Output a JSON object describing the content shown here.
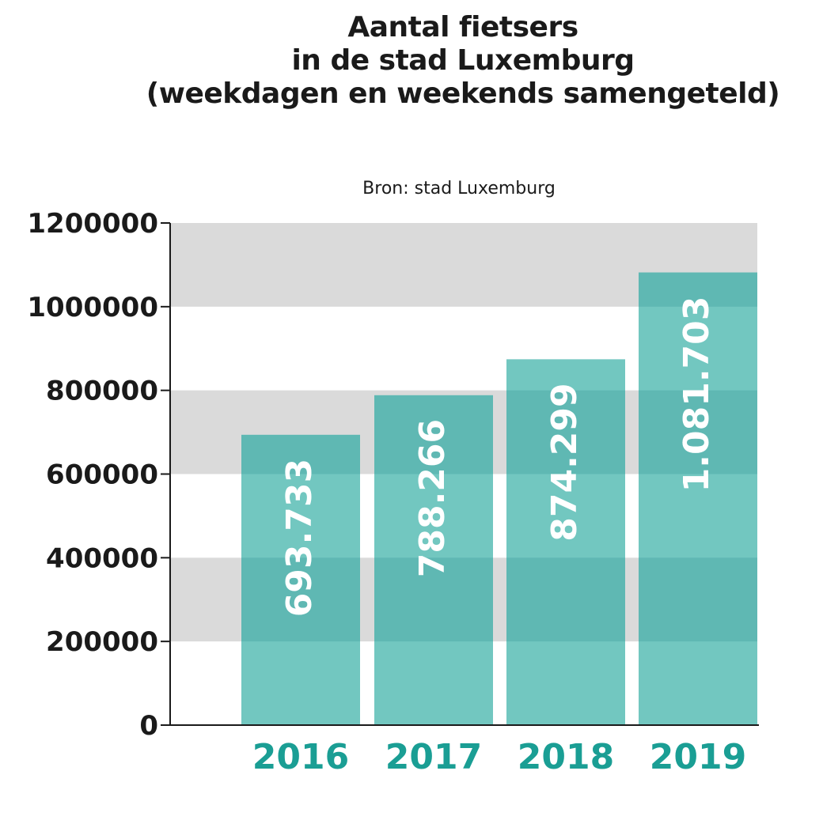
{
  "chart_data": {
    "type": "bar",
    "title_lines": [
      "Aantal fietsers",
      "in de stad Luxemburg",
      "(weekdagen en weekends samengeteld)"
    ],
    "subtitle": "Bron: stad Luxemburg",
    "categories": [
      "2016",
      "2017",
      "2018",
      "2019"
    ],
    "values": [
      693733,
      788266,
      874299,
      1081703
    ],
    "value_labels": [
      "693.733",
      "788.266",
      "874.299",
      "1.081.703"
    ],
    "y_ticks": [
      "0",
      "200000",
      "400000",
      "600000",
      "800000",
      "1000000",
      "1200000"
    ],
    "ylim": [
      0,
      1200000
    ],
    "grid": "alternating horizontal bands",
    "colors": {
      "bar": "#72c7c0",
      "bar_banded": "#5fb8b3",
      "band": "#dadada",
      "category_label": "#1a9e94",
      "value_label": "#ffffff",
      "axis": "#1a1a1a"
    }
  }
}
